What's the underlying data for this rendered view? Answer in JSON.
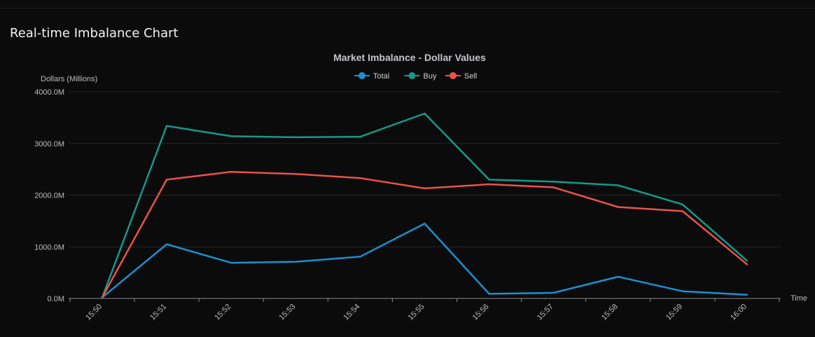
{
  "page": {
    "title": "Real-time Imbalance Chart"
  },
  "chart_data": {
    "type": "line",
    "title": "Market Imbalance - Dollar Values",
    "xlabel": "Time",
    "ylabel": "Dollars (Millions)",
    "categories": [
      "15:50",
      "15:51",
      "15:52",
      "15:53",
      "15:54",
      "15:55",
      "15:56",
      "15:57",
      "15:58",
      "15:59",
      "16:00"
    ],
    "y_ticks": [
      "0.0M",
      "1000.0M",
      "2000.0M",
      "3000.0M",
      "4000.0M"
    ],
    "ylim": [
      0,
      4000
    ],
    "grid": true,
    "legend_position": "top-center",
    "series": [
      {
        "name": "Total",
        "color": "#1a90d0",
        "values": [
          20,
          1050,
          690,
          710,
          810,
          1450,
          90,
          110,
          420,
          140,
          70
        ]
      },
      {
        "name": "Buy",
        "color": "#15998a",
        "values": [
          20,
          3340,
          3140,
          3120,
          3130,
          3580,
          2300,
          2260,
          2190,
          1820,
          730
        ]
      },
      {
        "name": "Sell",
        "color": "#e9524a",
        "values": [
          20,
          2300,
          2450,
          2410,
          2330,
          2130,
          2210,
          2150,
          1770,
          1690,
          660
        ]
      }
    ]
  }
}
